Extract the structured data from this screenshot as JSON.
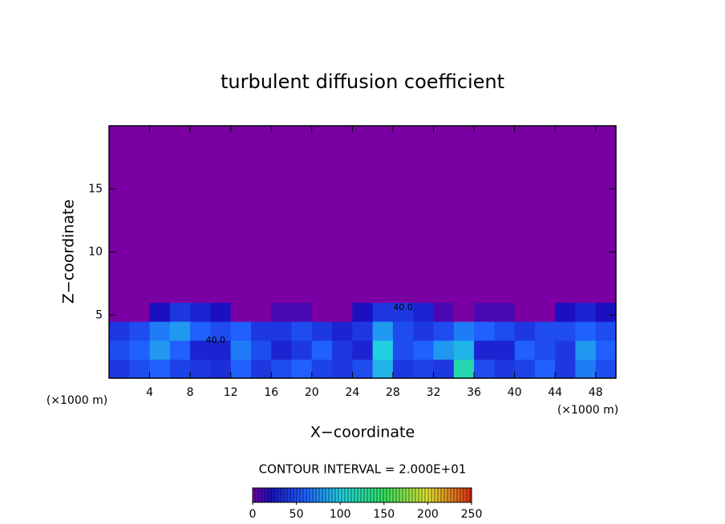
{
  "chart_data": {
    "type": "heatmap",
    "title": "turbulent diffusion coefficient",
    "x_label": "X−coordinate",
    "y_label": "Z−coordinate",
    "x_unit": "(×1000 m)",
    "y_unit": "(×1000 m)",
    "contour_interval_label": "CONTOUR INTERVAL = 2.000E+01",
    "xlim": [
      0,
      50
    ],
    "ylim": [
      0,
      20
    ],
    "xticks": [
      4,
      8,
      12,
      16,
      20,
      24,
      28,
      32,
      36,
      40,
      44,
      48
    ],
    "yticks": [
      5,
      10,
      15
    ],
    "x_edges": [
      0,
      2,
      4,
      6,
      8,
      10,
      12,
      14,
      16,
      18,
      20,
      22,
      24,
      26,
      28,
      30,
      32,
      34,
      36,
      38,
      40,
      42,
      44,
      46,
      48,
      50
    ],
    "y_edges": [
      0,
      1.5,
      3,
      4.5,
      6,
      20
    ],
    "z": [
      [
        40,
        50,
        60,
        45,
        40,
        35,
        60,
        40,
        50,
        60,
        45,
        40,
        50,
        90,
        40,
        45,
        40,
        120,
        50,
        40,
        45,
        60,
        40,
        70,
        50
      ],
      [
        50,
        60,
        80,
        60,
        30,
        30,
        70,
        50,
        30,
        40,
        60,
        40,
        30,
        100,
        50,
        60,
        80,
        90,
        30,
        30,
        60,
        50,
        40,
        80,
        60
      ],
      [
        40,
        50,
        70,
        80,
        60,
        50,
        60,
        40,
        40,
        50,
        40,
        30,
        40,
        80,
        50,
        40,
        50,
        70,
        60,
        50,
        40,
        50,
        50,
        60,
        50
      ],
      [
        0,
        0,
        20,
        40,
        30,
        20,
        0,
        0,
        10,
        10,
        0,
        0,
        20,
        40,
        40,
        30,
        10,
        0,
        10,
        10,
        0,
        0,
        20,
        30,
        20
      ],
      [
        0,
        0,
        0,
        0,
        0,
        0,
        0,
        0,
        0,
        0,
        0,
        0,
        0,
        0,
        0,
        0,
        0,
        0,
        0,
        0,
        0,
        0,
        0,
        0,
        0
      ]
    ],
    "annotations": [
      {
        "text": "40.0",
        "x": 29,
        "y": 5.6
      },
      {
        "text": "40.0",
        "x": 10.5,
        "y": 3
      }
    ],
    "colorbar_lim": [
      0,
      250
    ],
    "colorbar_ticks": [
      0,
      50,
      100,
      150,
      200,
      250
    ],
    "colormap": [
      {
        "value": 0,
        "color": "#7a00a4"
      },
      {
        "value": 20,
        "color": "#1a10c0"
      },
      {
        "value": 60,
        "color": "#1f60ff"
      },
      {
        "value": 100,
        "color": "#20d0e0"
      },
      {
        "value": 150,
        "color": "#30e060"
      },
      {
        "value": 200,
        "color": "#e0e030"
      },
      {
        "value": 250,
        "color": "#e03010"
      }
    ]
  }
}
